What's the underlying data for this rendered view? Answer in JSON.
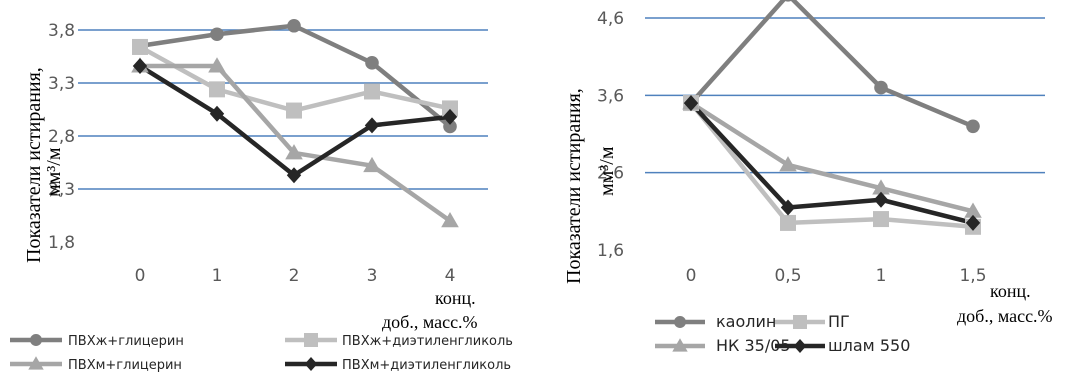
{
  "chart_data": [
    {
      "type": "line",
      "ylabel_main": "Показатели истирания,",
      "ylabel_unit": "мм³/м",
      "xlabel_line1": "конц.",
      "xlabel_line2": "доб., масс.%",
      "x": [
        "0",
        "1",
        "2",
        "3",
        "4"
      ],
      "yticks": [
        "3,8",
        "3,3",
        "2,8",
        "2,3",
        "1,8"
      ],
      "ylim": [
        1.8,
        3.8
      ],
      "grid": true,
      "legend": "bottom",
      "series": [
        {
          "name": "ПВХж+глицерин",
          "values": [
            3.65,
            3.76,
            3.84,
            3.49,
            2.89
          ],
          "marker": "circle",
          "color": "#7f7f7f"
        },
        {
          "name": "ПВХж+диэтиленгликоль",
          "values": [
            3.64,
            3.24,
            3.04,
            3.22,
            3.06
          ],
          "marker": "square",
          "color": "#bfbfbf"
        },
        {
          "name": "ПВХм+глицерин",
          "values": [
            3.46,
            3.46,
            2.64,
            2.52,
            2.0
          ],
          "marker": "triangle",
          "color": "#a6a6a6"
        },
        {
          "name": "ПВХм+диэтиленгликоль",
          "values": [
            3.46,
            3.01,
            2.43,
            2.9,
            2.98
          ],
          "marker": "diamond",
          "color": "#262626"
        }
      ]
    },
    {
      "type": "line",
      "ylabel_main": "Показатели истирания,",
      "ylabel_unit": "мм³/м",
      "xlabel_line1": "конц.",
      "xlabel_line2": "доб., масс.%",
      "x": [
        "0",
        "0,5",
        "1",
        "1,5"
      ],
      "yticks": [
        "4,6",
        "3,6",
        "2,6",
        "1,6"
      ],
      "ylim": [
        1.6,
        4.6
      ],
      "grid": true,
      "legend": "bottom",
      "series": [
        {
          "name": "каолин",
          "values": [
            3.5,
            4.9,
            3.7,
            3.2
          ],
          "marker": "circle",
          "color": "#7f7f7f"
        },
        {
          "name": "ПГ",
          "values": [
            3.5,
            1.95,
            2.0,
            1.9
          ],
          "marker": "square",
          "color": "#bfbfbf"
        },
        {
          "name": "НК 35/05",
          "values": [
            3.5,
            2.7,
            2.4,
            2.1
          ],
          "marker": "triangle",
          "color": "#a6a6a6"
        },
        {
          "name": "шлам 550",
          "values": [
            3.5,
            2.15,
            2.25,
            1.95
          ],
          "marker": "diamond",
          "color": "#262626"
        }
      ]
    }
  ]
}
